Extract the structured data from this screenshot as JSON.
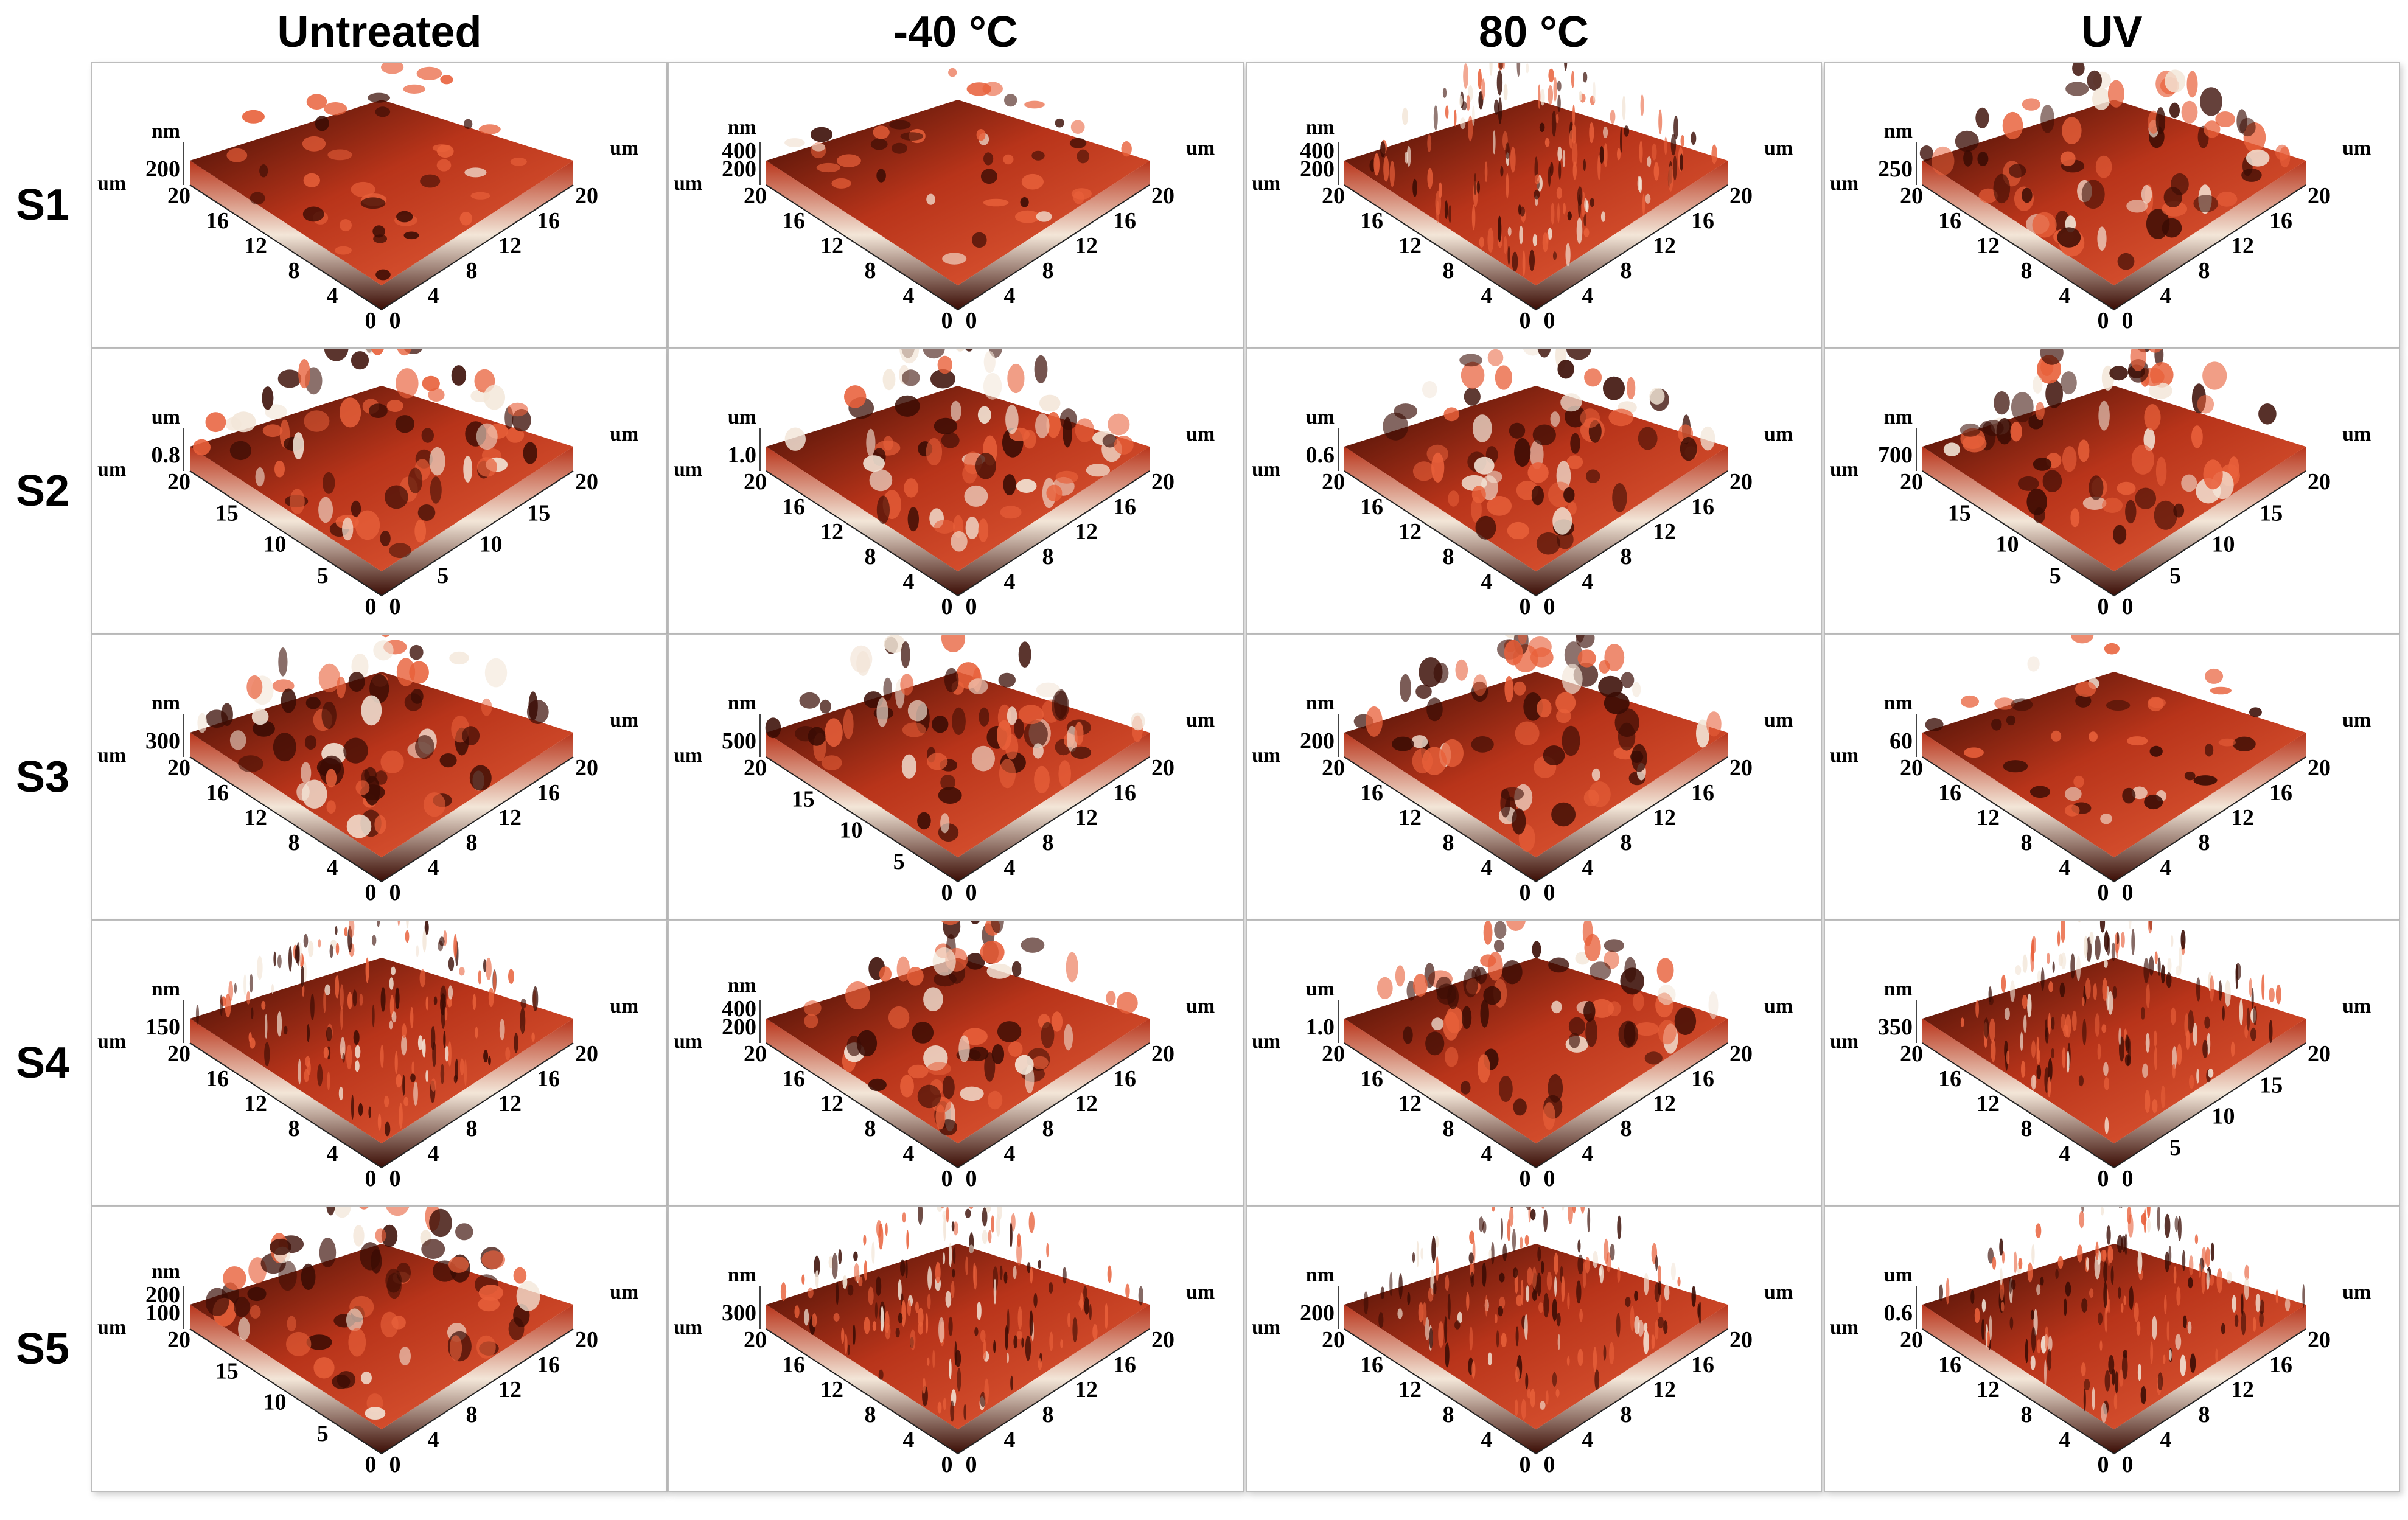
{
  "columns": [
    "Untreated",
    "-40 °C",
    "80 °C",
    "UV"
  ],
  "rows": [
    "S1",
    "S2",
    "S3",
    "S4",
    "S5"
  ],
  "colors": {
    "surface_dark": "#3a0c04",
    "surface_mid": "#b8341a",
    "surface_light": "#e8603a",
    "highlight": "#f3e6d8",
    "panel_border": "#bdbdbd"
  },
  "panels": [
    [
      {
        "z_unit": "nm",
        "z_ticks": [
          "200"
        ],
        "left_ticks": [
          "20",
          "16",
          "12",
          "8",
          "4",
          "0"
        ],
        "right_ticks": [
          "0",
          "4",
          "8",
          "12",
          "16",
          "20"
        ],
        "unit": "um",
        "texture": 0
      },
      {
        "z_unit": "nm",
        "z_ticks": [
          "400",
          "200"
        ],
        "left_ticks": [
          "20",
          "16",
          "12",
          "8",
          "4",
          "0"
        ],
        "right_ticks": [
          "0",
          "4",
          "8",
          "12",
          "16",
          "20"
        ],
        "unit": "um",
        "texture": 0
      },
      {
        "z_unit": "nm",
        "z_ticks": [
          "400",
          "200"
        ],
        "left_ticks": [
          "20",
          "16",
          "12",
          "8",
          "4",
          "0"
        ],
        "right_ticks": [
          "0",
          "4",
          "8",
          "12",
          "16",
          "20"
        ],
        "unit": "um",
        "texture": 1
      },
      {
        "z_unit": "nm",
        "z_ticks": [
          "250"
        ],
        "left_ticks": [
          "20",
          "16",
          "12",
          "8",
          "4",
          "0"
        ],
        "right_ticks": [
          "0",
          "4",
          "8",
          "12",
          "16",
          "20"
        ],
        "unit": "um",
        "texture": 2
      }
    ],
    [
      {
        "z_unit": "um",
        "z_ticks": [
          "0.8"
        ],
        "left_ticks": [
          "20",
          "15",
          "10",
          "5",
          "0"
        ],
        "right_ticks": [
          "0",
          "5",
          "10",
          "15",
          "20"
        ],
        "unit": "um",
        "texture": 2
      },
      {
        "z_unit": "um",
        "z_ticks": [
          "1.0"
        ],
        "left_ticks": [
          "20",
          "16",
          "12",
          "8",
          "4",
          "0"
        ],
        "right_ticks": [
          "0",
          "4",
          "8",
          "12",
          "16",
          "20"
        ],
        "unit": "um",
        "texture": 2
      },
      {
        "z_unit": "um",
        "z_ticks": [
          "0.6"
        ],
        "left_ticks": [
          "20",
          "16",
          "12",
          "8",
          "4",
          "0"
        ],
        "right_ticks": [
          "0",
          "4",
          "8",
          "12",
          "16",
          "20"
        ],
        "unit": "um",
        "texture": 2
      },
      {
        "z_unit": "nm",
        "z_ticks": [
          "700"
        ],
        "left_ticks": [
          "20",
          "15",
          "10",
          "5",
          "0"
        ],
        "right_ticks": [
          "0",
          "5",
          "10",
          "15",
          "20"
        ],
        "unit": "um",
        "texture": 2
      }
    ],
    [
      {
        "z_unit": "nm",
        "z_ticks": [
          "300"
        ],
        "left_ticks": [
          "20",
          "16",
          "12",
          "8",
          "4",
          "0"
        ],
        "right_ticks": [
          "0",
          "4",
          "8",
          "12",
          "16",
          "20"
        ],
        "unit": "um",
        "texture": 2
      },
      {
        "z_unit": "nm",
        "z_ticks": [
          "500"
        ],
        "left_ticks": [
          "20",
          "15",
          "10",
          "5",
          "0"
        ],
        "right_ticks": [
          "0",
          "4",
          "8",
          "12",
          "16",
          "20"
        ],
        "unit": "um",
        "texture": 2
      },
      {
        "z_unit": "nm",
        "z_ticks": [
          "200"
        ],
        "left_ticks": [
          "20",
          "16",
          "12",
          "8",
          "4",
          "0"
        ],
        "right_ticks": [
          "0",
          "4",
          "8",
          "12",
          "16",
          "20"
        ],
        "unit": "um",
        "texture": 2
      },
      {
        "z_unit": "nm",
        "z_ticks": [
          "60"
        ],
        "left_ticks": [
          "20",
          "16",
          "12",
          "8",
          "4",
          "0"
        ],
        "right_ticks": [
          "0",
          "4",
          "8",
          "12",
          "16",
          "20"
        ],
        "unit": "um",
        "texture": 0
      }
    ],
    [
      {
        "z_unit": "nm",
        "z_ticks": [
          "150"
        ],
        "left_ticks": [
          "20",
          "16",
          "12",
          "8",
          "4",
          "0"
        ],
        "right_ticks": [
          "0",
          "4",
          "8",
          "12",
          "16",
          "20"
        ],
        "unit": "um",
        "texture": 1
      },
      {
        "z_unit": "nm",
        "z_ticks": [
          "400",
          "200"
        ],
        "left_ticks": [
          "20",
          "16",
          "12",
          "8",
          "4",
          "0"
        ],
        "right_ticks": [
          "0",
          "4",
          "8",
          "12",
          "16",
          "20"
        ],
        "unit": "um",
        "texture": 2
      },
      {
        "z_unit": "um",
        "z_ticks": [
          "1.0"
        ],
        "left_ticks": [
          "20",
          "16",
          "12",
          "8",
          "4",
          "0"
        ],
        "right_ticks": [
          "0",
          "4",
          "8",
          "12",
          "16",
          "20"
        ],
        "unit": "um",
        "texture": 2
      },
      {
        "z_unit": "nm",
        "z_ticks": [
          "350"
        ],
        "left_ticks": [
          "20",
          "16",
          "12",
          "8",
          "4",
          "0"
        ],
        "right_ticks": [
          "0",
          "5",
          "10",
          "15",
          "20"
        ],
        "unit": "um",
        "texture": 1
      }
    ],
    [
      {
        "z_unit": "nm",
        "z_ticks": [
          "200",
          "100"
        ],
        "left_ticks": [
          "20",
          "15",
          "10",
          "5",
          "0"
        ],
        "right_ticks": [
          "0",
          "4",
          "8",
          "12",
          "16",
          "20"
        ],
        "unit": "um",
        "texture": 2
      },
      {
        "z_unit": "nm",
        "z_ticks": [
          "300"
        ],
        "left_ticks": [
          "20",
          "16",
          "12",
          "8",
          "4",
          "0"
        ],
        "right_ticks": [
          "0",
          "4",
          "8",
          "12",
          "16",
          "20"
        ],
        "unit": "um",
        "texture": 1
      },
      {
        "z_unit": "nm",
        "z_ticks": [
          "200"
        ],
        "left_ticks": [
          "20",
          "16",
          "12",
          "8",
          "4",
          "0"
        ],
        "right_ticks": [
          "0",
          "4",
          "8",
          "12",
          "16",
          "20"
        ],
        "unit": "um",
        "texture": 1
      },
      {
        "z_unit": "um",
        "z_ticks": [
          "0.6"
        ],
        "left_ticks": [
          "20",
          "16",
          "12",
          "8",
          "4",
          "0"
        ],
        "right_ticks": [
          "0",
          "4",
          "8",
          "12",
          "16",
          "20"
        ],
        "unit": "um",
        "texture": 1
      }
    ]
  ]
}
